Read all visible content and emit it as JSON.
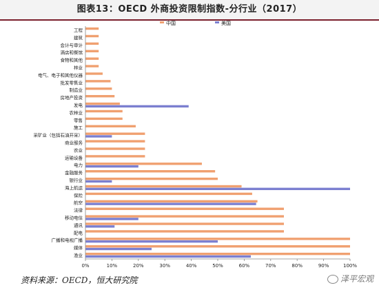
{
  "title": "图表13：OECD 外商投资限制指数-分行业（2017）",
  "source": "资料来源：OECD，恒大研究院",
  "watermark": "泽平宏观",
  "chart_data": {
    "type": "bar",
    "orientation": "horizontal",
    "categories": [
      "工程",
      "建筑",
      "会计与审计",
      "酒店和餐馆",
      "食物和其他",
      "林业",
      "电气、电子和其他仪器",
      "批发零售业",
      "制造业",
      "房地产投资",
      "发电",
      "农林业",
      "零售",
      "施工",
      "采矿业（包括石油开采）",
      "商业服务",
      "农业",
      "运输设备",
      "电力",
      "金融服务",
      "银行业",
      "海上航运",
      "保险",
      "航空",
      "法律",
      "移动电信",
      "通讯",
      "配电",
      "广播和电视广播",
      "媒体",
      "渔业"
    ],
    "series": [
      {
        "name": "中国",
        "color": "#f0a070",
        "values": [
          0.05,
          0.05,
          0.05,
          0.05,
          0.05,
          0.05,
          0.065,
          0.095,
          0.1,
          0.11,
          0.13,
          0.14,
          0.14,
          0.19,
          0.225,
          0.225,
          0.225,
          0.225,
          0.44,
          0.49,
          0.5,
          0.59,
          0.63,
          0.65,
          0.75,
          0.75,
          0.75,
          0.75,
          1.0,
          1.0,
          1.0
        ]
      },
      {
        "name": "美国",
        "color": "#7b7fd0",
        "values": [
          0,
          0,
          0,
          0,
          0,
          0,
          0,
          0,
          0,
          0,
          0.39,
          0,
          0,
          0,
          0.1,
          0,
          0,
          0,
          0.2,
          0,
          0.1,
          1.0,
          0,
          0.645,
          0,
          0.2,
          0.11,
          0,
          0.5,
          0.25,
          0.625
        ]
      }
    ],
    "xlim": [
      0,
      1
    ],
    "xticks": [
      "0%",
      "10%",
      "20%",
      "30%",
      "40%",
      "50%",
      "60%",
      "70%",
      "80%",
      "90%",
      "100%"
    ],
    "legend": "top-center",
    "grid": false
  }
}
